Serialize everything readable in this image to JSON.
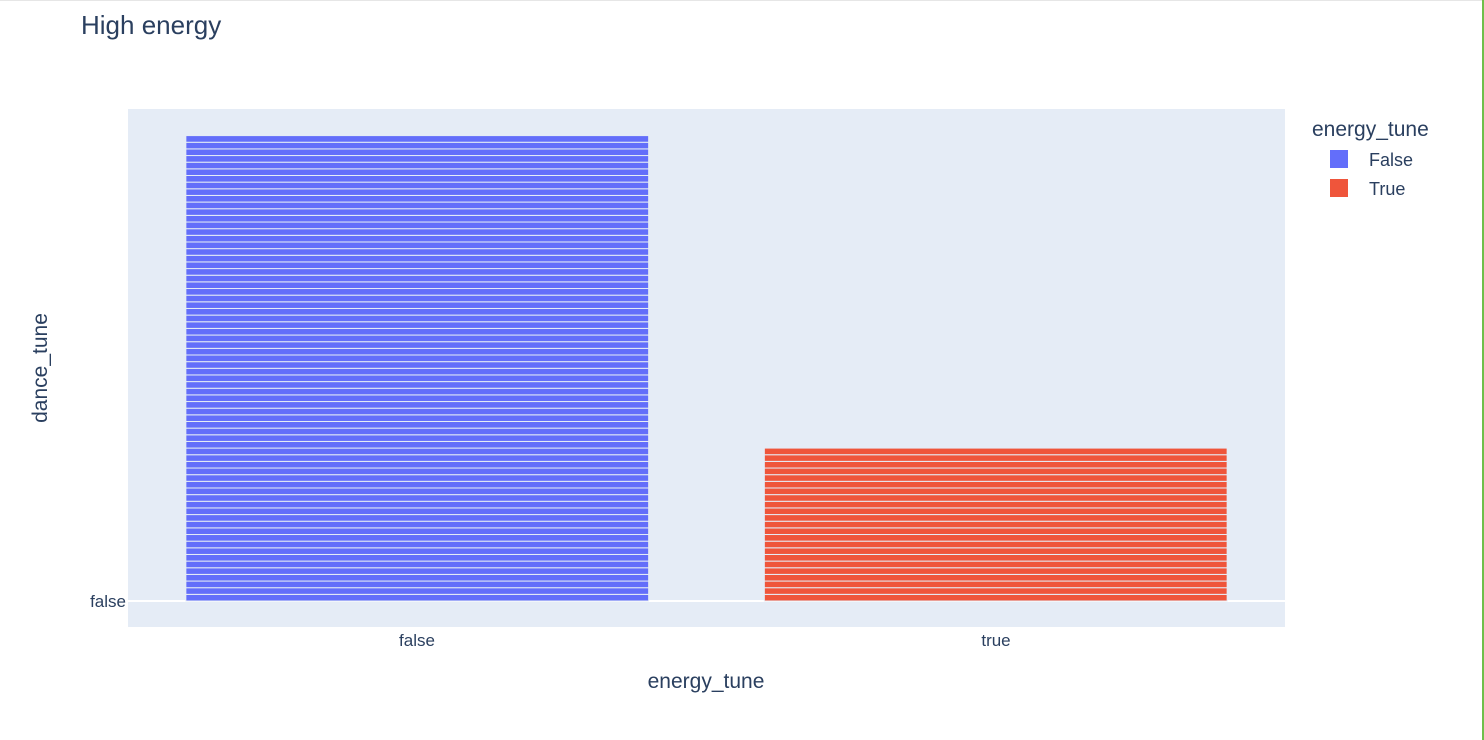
{
  "chart_data": {
    "type": "bar",
    "title": "High energy",
    "xlabel": "energy_tune",
    "ylabel": "dance_tune",
    "categories": [
      "false",
      "true"
    ],
    "y_tick_labels": [
      "false"
    ],
    "series": [
      {
        "name": "False",
        "category": "false",
        "color": "#636efa",
        "stacked_segments": 70
      },
      {
        "name": "True",
        "category": "true",
        "color": "#ef553b",
        "stacked_segments": 23
      }
    ],
    "ylim": [
      0,
      74
    ],
    "legend": {
      "title": "energy_tune",
      "placement": "top-right"
    },
    "grid": true,
    "plot_background": "#e5ecf6"
  }
}
